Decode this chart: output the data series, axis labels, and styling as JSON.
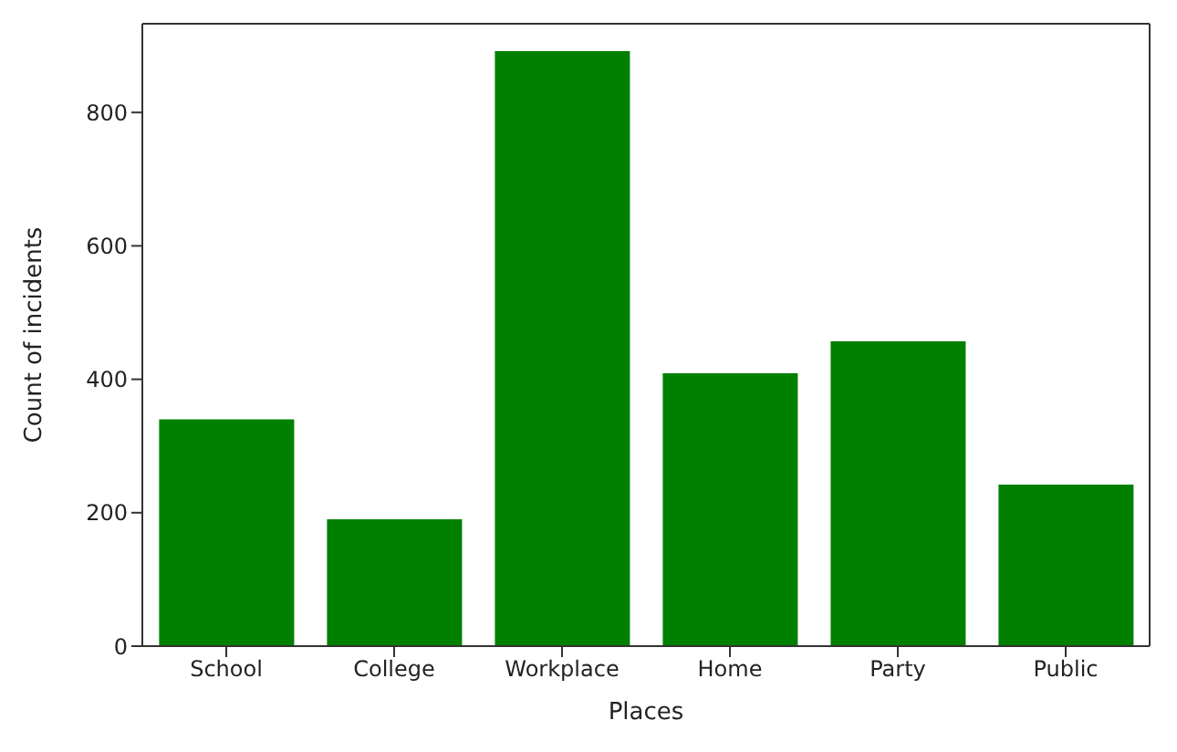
{
  "chart_data": {
    "type": "bar",
    "xlabel": "Places",
    "ylabel": "Count of incidents",
    "categories": [
      "School",
      "College",
      "Workplace",
      "Home",
      "Party",
      "Public"
    ],
    "values": [
      340,
      190,
      892,
      409,
      457,
      242
    ],
    "color": "#008000",
    "ylim": [
      0,
      933
    ],
    "yticks": [
      0,
      200,
      400,
      600,
      800
    ],
    "grid": false,
    "legend": false
  }
}
